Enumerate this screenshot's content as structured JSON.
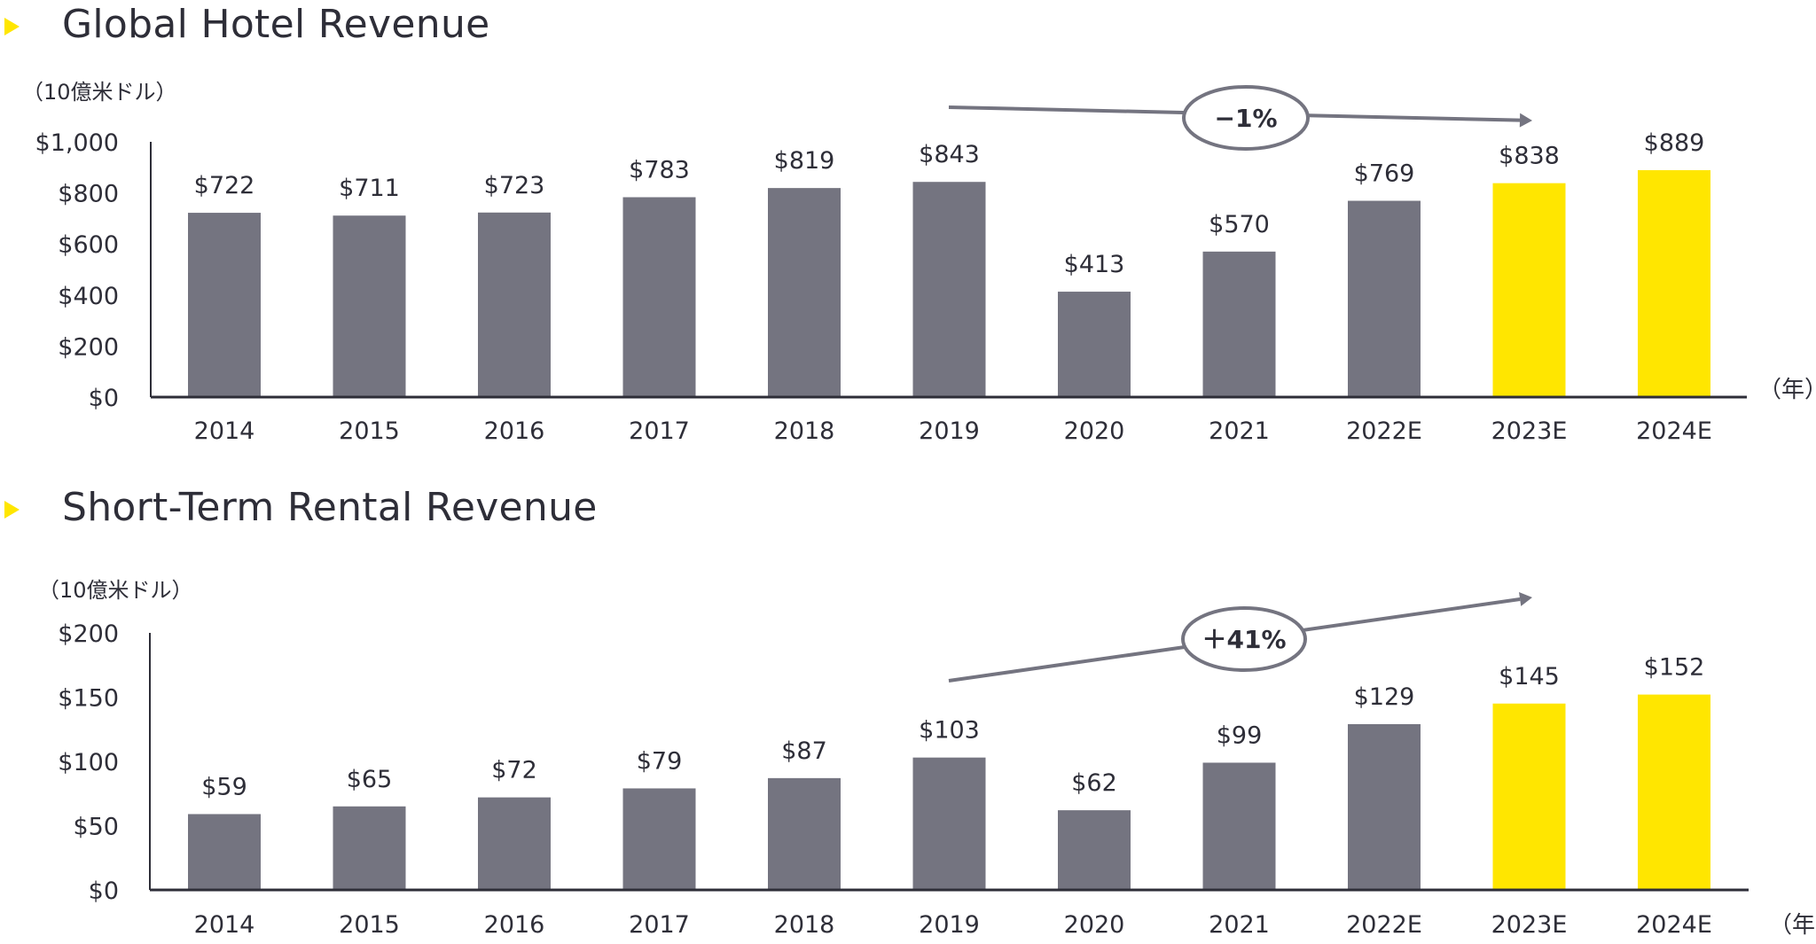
{
  "accent_color": "#ffe600",
  "bar_color": "#747480",
  "text_color": "#2e2e38",
  "bullet_icon": "yellow-triangle-bullet",
  "chart_data": [
    {
      "type": "bar",
      "title": "Global Hotel Revenue",
      "ylabel": "（10億米ドル）",
      "xlabel": "（年）",
      "ylim": [
        0,
        1000
      ],
      "yticks": [
        0,
        200,
        400,
        600,
        800,
        1000
      ],
      "ytick_labels": [
        "$0",
        "$200",
        "$400",
        "$600",
        "$800",
        "$1,000"
      ],
      "categories": [
        "2014",
        "2015",
        "2016",
        "2017",
        "2018",
        "2019",
        "2020",
        "2021",
        "2022E",
        "2023E",
        "2024E"
      ],
      "values": [
        722,
        711,
        723,
        783,
        819,
        843,
        413,
        570,
        769,
        838,
        889
      ],
      "value_labels": [
        "$722",
        "$711",
        "$723",
        "$783",
        "$819",
        "$843",
        "$413",
        "$570",
        "$769",
        "$838",
        "$889"
      ],
      "highlighted": [
        false,
        false,
        false,
        false,
        false,
        false,
        false,
        false,
        false,
        true,
        true
      ],
      "grid": false,
      "annotation": {
        "text": "−1%",
        "from": "2019",
        "to": "2023E",
        "direction": "down"
      }
    },
    {
      "type": "bar",
      "title": "Short-Term Rental Revenue",
      "ylabel": "（10億米ドル）",
      "xlabel": "（年）",
      "ylim": [
        0,
        200
      ],
      "yticks": [
        0,
        50,
        100,
        150,
        200
      ],
      "ytick_labels": [
        "$0",
        "$50",
        "$100",
        "$150",
        "$200"
      ],
      "categories": [
        "2014",
        "2015",
        "2016",
        "2017",
        "2018",
        "2019",
        "2020",
        "2021",
        "2022E",
        "2023E",
        "2024E"
      ],
      "values": [
        59,
        65,
        72,
        79,
        87,
        103,
        62,
        99,
        129,
        145,
        152
      ],
      "value_labels": [
        "$59",
        "$65",
        "$72",
        "$79",
        "$87",
        "$103",
        "$62",
        "$99",
        "$129",
        "$145",
        "$152"
      ],
      "highlighted": [
        false,
        false,
        false,
        false,
        false,
        false,
        false,
        false,
        false,
        true,
        true
      ],
      "grid": false,
      "annotation": {
        "text": "＋41%",
        "from": "2019",
        "to": "2023E",
        "direction": "up"
      }
    }
  ]
}
